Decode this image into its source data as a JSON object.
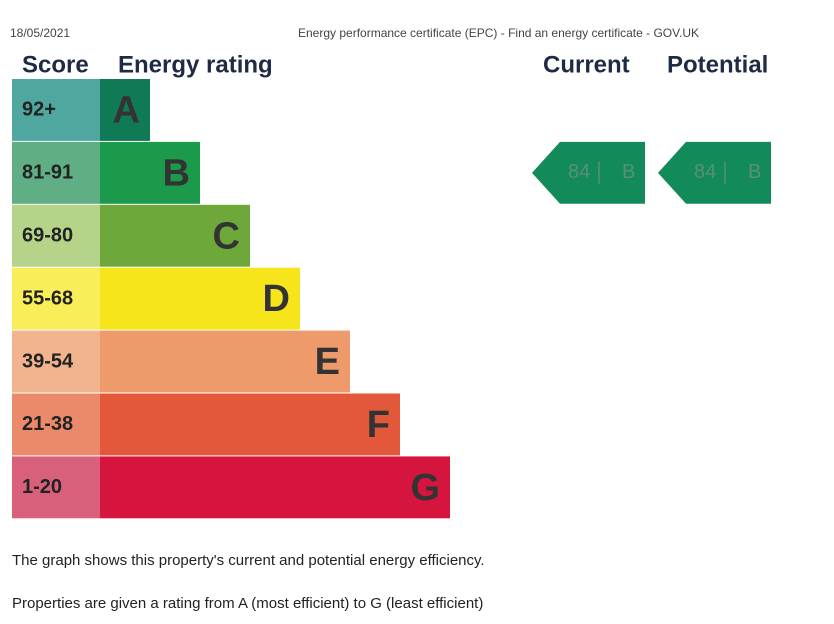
{
  "header": {
    "date": "18/05/2021",
    "title": "Energy performance certificate (EPC) - Find an energy certificate - GOV.UK"
  },
  "columns": {
    "score": "Score",
    "rating": "Energy rating",
    "current": "Current",
    "potential": "Potential"
  },
  "bands": [
    {
      "score": "92+",
      "letter": "A"
    },
    {
      "score": "81-91",
      "letter": "B"
    },
    {
      "score": "69-80",
      "letter": "C"
    },
    {
      "score": "55-68",
      "letter": "D"
    },
    {
      "score": "39-54",
      "letter": "E"
    },
    {
      "score": "21-38",
      "letter": "F"
    },
    {
      "score": "1-20",
      "letter": "G"
    }
  ],
  "current": {
    "score": "84",
    "letter": "B"
  },
  "potential": {
    "score": "84",
    "letter": "B"
  },
  "paragraphs": [
    "The graph shows this property's current and potential energy efficiency.",
    "Properties are given a rating from A (most efficient) to G (least efficient)"
  ]
}
